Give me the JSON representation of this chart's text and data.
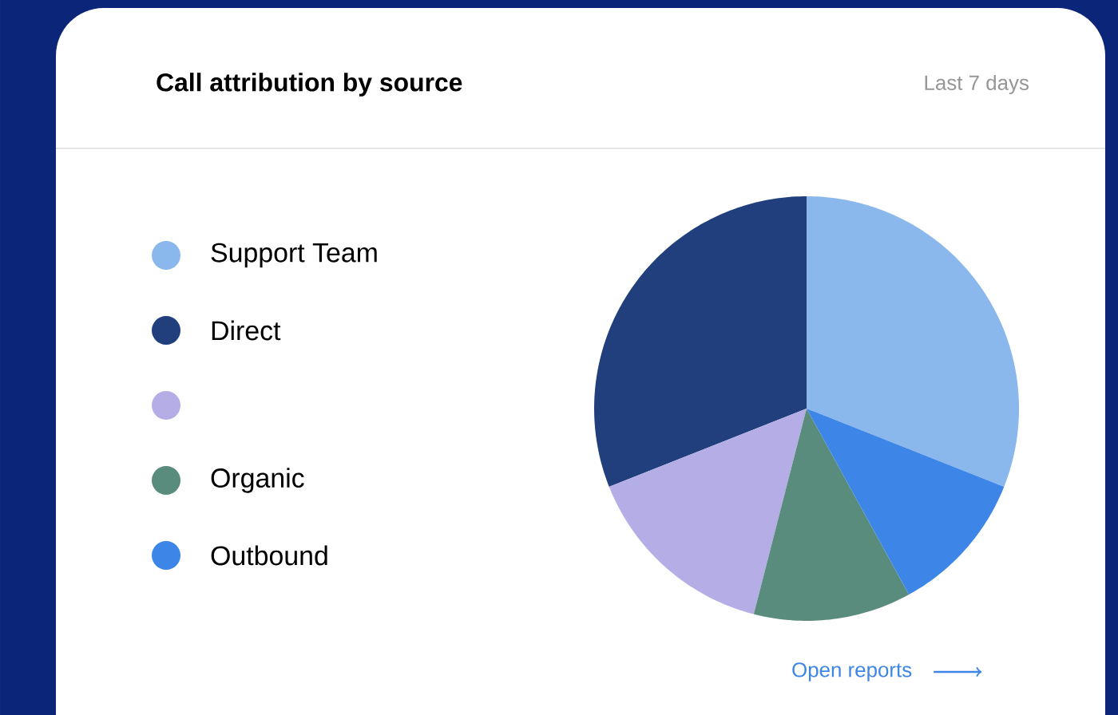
{
  "chart_data": {
    "type": "pie",
    "title": "Call attribution by source",
    "subtitle": "Last 7 days",
    "categories": [
      "Support Team",
      "Direct",
      null,
      "Organic",
      "Outbound"
    ],
    "values": [
      31,
      31,
      15,
      12,
      11
    ],
    "colors": [
      "#8ab8ec",
      "#213f7c",
      "#b5aee6",
      "#5a8c7e",
      "#3d86e8"
    ],
    "legend": "left",
    "annotations": [
      "Open reports"
    ]
  }
}
